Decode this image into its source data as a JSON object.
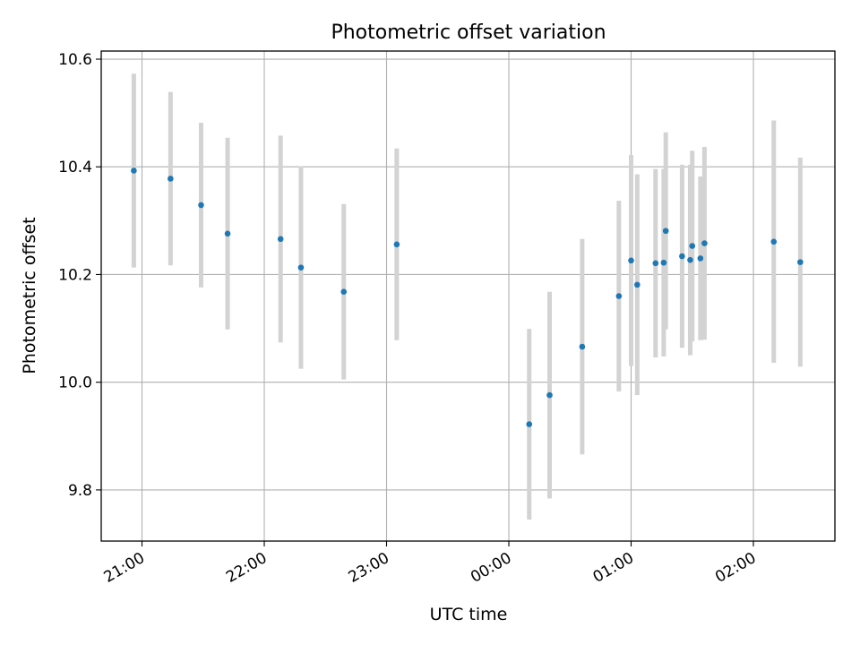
{
  "chart_data": {
    "type": "scatter",
    "title": "Photometric offset variation",
    "xlabel": "UTC time",
    "ylabel": "Photometric offset",
    "x_axis": {
      "type": "time",
      "tick_values": [
        "20:00",
        "21:00",
        "22:00",
        "23:00",
        "00:00",
        "01:00",
        "02:00"
      ],
      "tick_labels": [
        "21:00",
        "22:00",
        "23:00",
        "00:00",
        "01:00",
        "02:00"
      ],
      "xlim": [
        "20:40",
        "02:40"
      ]
    },
    "y_axis": {
      "ylim": [
        9.705,
        10.615
      ],
      "ticks": [
        9.8,
        10.0,
        10.2,
        10.4,
        10.6
      ],
      "tick_labels": [
        "9.8",
        "10.0",
        "10.2",
        "10.4",
        "10.6"
      ]
    },
    "grid": true,
    "colors": {
      "point": "#1f77b4",
      "errorbar": "#d3d3d3",
      "grid": "#b0b0b0"
    },
    "points": [
      {
        "time": "20:56",
        "y": 10.393,
        "err": 0.18
      },
      {
        "time": "21:14",
        "y": 10.378,
        "err": 0.161
      },
      {
        "time": "21:29",
        "y": 10.329,
        "err": 0.153
      },
      {
        "time": "21:42",
        "y": 10.276,
        "err": 0.178
      },
      {
        "time": "22:08",
        "y": 10.266,
        "err": 0.192
      },
      {
        "time": "22:18",
        "y": 10.213,
        "err": 0.188
      },
      {
        "time": "22:39",
        "y": 10.168,
        "err": 0.163
      },
      {
        "time": "23:05",
        "y": 10.256,
        "err": 0.178
      },
      {
        "time": "00:10",
        "y": 9.922,
        "err": 0.177
      },
      {
        "time": "00:20",
        "y": 9.976,
        "err": 0.192
      },
      {
        "time": "00:36",
        "y": 10.066,
        "err": 0.2
      },
      {
        "time": "00:54",
        "y": 10.16,
        "err": 0.177
      },
      {
        "time": "01:00",
        "y": 10.226,
        "err": 0.196
      },
      {
        "time": "01:03",
        "y": 10.181,
        "err": 0.205
      },
      {
        "time": "01:12",
        "y": 10.221,
        "err": 0.175
      },
      {
        "time": "01:16",
        "y": 10.222,
        "err": 0.174
      },
      {
        "time": "01:17",
        "y": 10.281,
        "err": 0.183
      },
      {
        "time": "01:25",
        "y": 10.234,
        "err": 0.17
      },
      {
        "time": "01:29",
        "y": 10.227,
        "err": 0.177
      },
      {
        "time": "01:30",
        "y": 10.253,
        "err": 0.177
      },
      {
        "time": "01:34",
        "y": 10.23,
        "err": 0.152
      },
      {
        "time": "01:36",
        "y": 10.258,
        "err": 0.179
      },
      {
        "time": "02:10",
        "y": 10.261,
        "err": 0.225
      },
      {
        "time": "02:23",
        "y": 10.223,
        "err": 0.194
      }
    ]
  }
}
